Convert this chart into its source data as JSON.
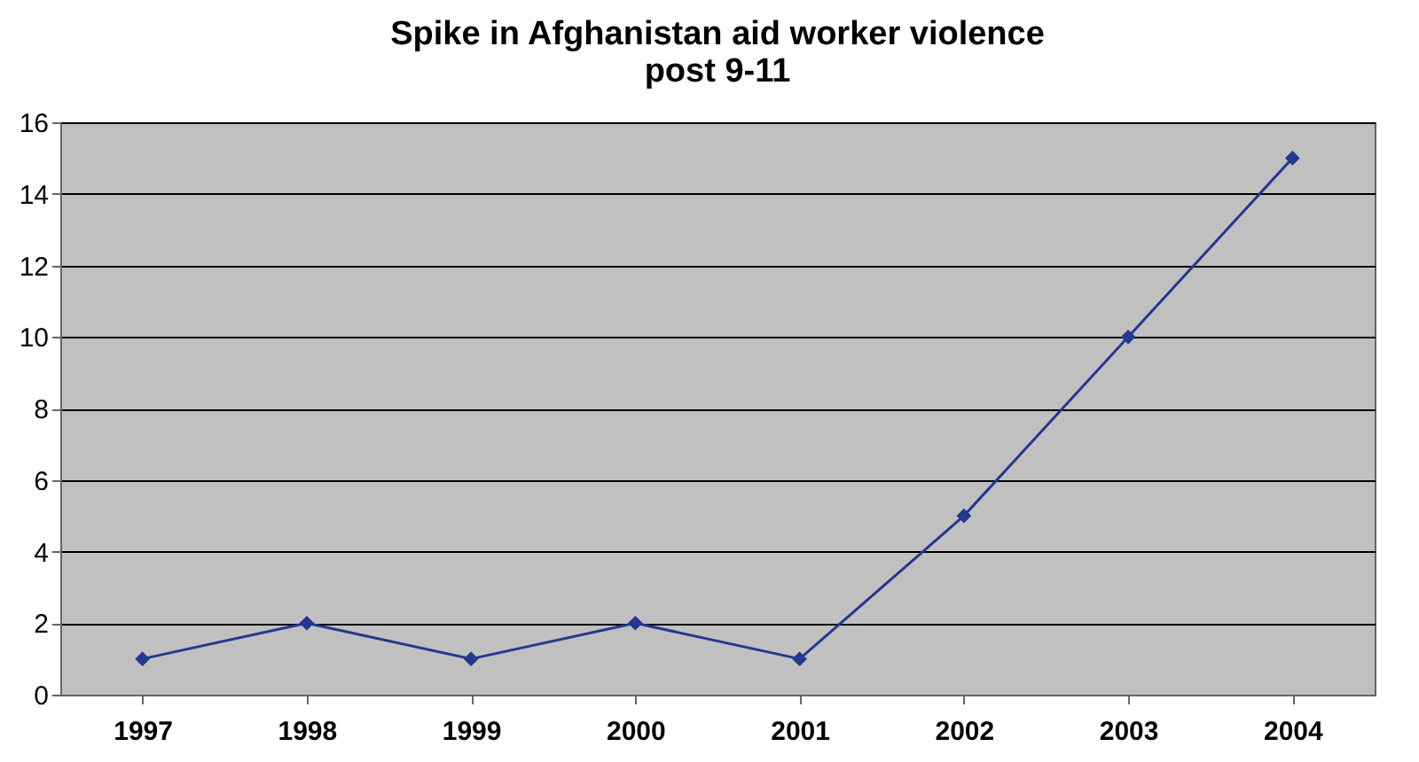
{
  "chart_data": {
    "type": "line",
    "title": [
      "Spike in Afghanistan aid worker violence",
      "post 9-11"
    ],
    "categories": [
      "1997",
      "1998",
      "1999",
      "2000",
      "2001",
      "2002",
      "2003",
      "2004"
    ],
    "series": [
      {
        "color": "#23388f",
        "values": [
          1,
          2,
          1,
          2,
          1,
          5,
          10,
          15
        ]
      }
    ],
    "ylim": [
      0,
      16
    ],
    "yticks": [
      0,
      2,
      4,
      6,
      8,
      10,
      12,
      14,
      16
    ],
    "grid": "y",
    "marker": "diamond",
    "line_style": "solid"
  }
}
